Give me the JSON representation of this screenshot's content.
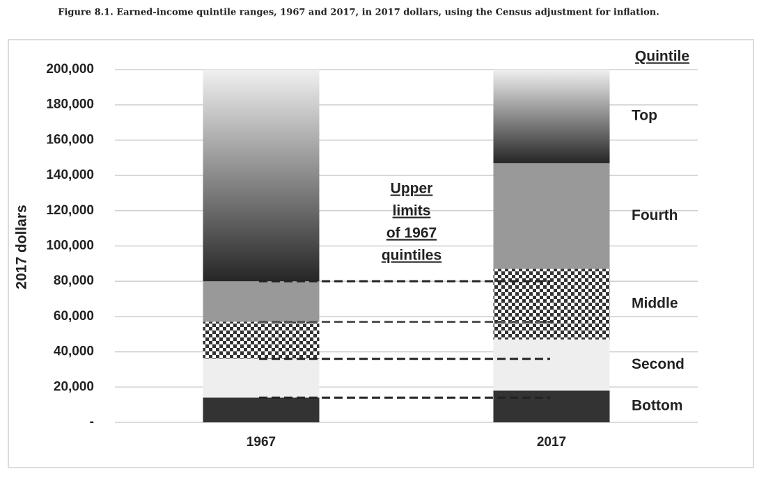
{
  "chart_data": {
    "type": "stacked-bar",
    "title": "Figure 8.1. Earned-income quintile ranges, 1967 and 2017, in 2017 dollars, using the Census adjustment for inflation.",
    "y_label": "2017 dollars",
    "categories": [
      "1967",
      "2017"
    ],
    "legend_title": "Quintile",
    "series": [
      {
        "name": "Bottom",
        "color": "#333333",
        "values": [
          14000,
          18000
        ]
      },
      {
        "name": "Second",
        "color": "#eeeeee",
        "values": [
          22000,
          29000
        ]
      },
      {
        "name": "Middle",
        "color": "#888888",
        "pattern": "checkerboard",
        "values": [
          21000,
          40000
        ]
      },
      {
        "name": "Fourth",
        "color": "#999999",
        "values": [
          23000,
          60000
        ]
      },
      {
        "name": "Top",
        "color": "#777777",
        "gradient": [
          "#f0f0f0",
          "#262626"
        ],
        "values": [
          120000,
          53000
        ]
      }
    ],
    "annotation": [
      "Upper",
      "limits",
      "of 1967",
      "quintiles"
    ],
    "ylim": [
      0,
      200000
    ],
    "yticks": [
      {
        "value": 0,
        "label": "-"
      },
      {
        "value": 20000,
        "label": "20,000"
      },
      {
        "value": 40000,
        "label": "40,000"
      },
      {
        "value": 60000,
        "label": "60,000"
      },
      {
        "value": 80000,
        "label": "80,000"
      },
      {
        "value": 100000,
        "label": "100,000"
      },
      {
        "value": 120000,
        "label": "120,000"
      },
      {
        "value": 140000,
        "label": "140,000"
      },
      {
        "value": 160000,
        "label": "160,000"
      },
      {
        "value": 180000,
        "label": "180,000"
      },
      {
        "value": 200000,
        "label": "200,000"
      }
    ],
    "grid": true
  }
}
